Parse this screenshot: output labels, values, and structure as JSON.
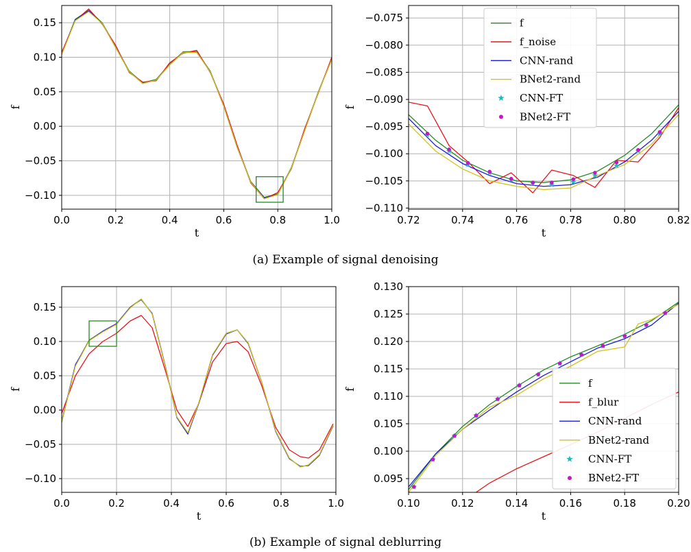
{
  "colors": {
    "f": "#228b22",
    "f_noise": "#e8141b",
    "f_blur": "#e8141b",
    "CNN-rand": "#1a1ae6",
    "BNet2-rand": "#d4c21a",
    "CNN-FT": "#1cbcbc",
    "BNet2-FT": "#c21ac2",
    "grid": "#b0b0b0",
    "zoom_box": "#228b22"
  },
  "captions": {
    "a": "(a)  Example of signal denoising",
    "b": "(b)  Example of signal deblurring"
  },
  "chart_data": [
    {
      "id": "a1",
      "type": "line",
      "xlabel": "t",
      "ylabel": "f",
      "xlim": [
        0.0,
        1.0
      ],
      "ylim": [
        -0.12,
        0.175
      ],
      "xticks": [
        0.0,
        0.2,
        0.4,
        0.6,
        0.8,
        1.0
      ],
      "xtick_labels": [
        "0.0",
        "0.2",
        "0.4",
        "0.6",
        "0.8",
        "1.0"
      ],
      "yticks": [
        0.15,
        0.1,
        0.05,
        0.0,
        -0.05,
        -0.1
      ],
      "ytick_labels": [
        "0.15",
        "0.10",
        "0.05",
        "0.00",
        "−0.05",
        "−0.10"
      ],
      "grid": true,
      "zoom_box": {
        "x": [
          0.72,
          0.82
        ],
        "y": [
          -0.11,
          -0.073
        ]
      },
      "x": [
        0.0,
        0.05,
        0.1,
        0.15,
        0.2,
        0.25,
        0.3,
        0.35,
        0.4,
        0.45,
        0.5,
        0.55,
        0.6,
        0.65,
        0.7,
        0.75,
        0.8,
        0.85,
        0.9,
        0.95,
        1.0
      ],
      "series": [
        {
          "name": "f",
          "values": [
            0.105,
            0.155,
            0.168,
            0.15,
            0.115,
            0.08,
            0.063,
            0.068,
            0.09,
            0.108,
            0.108,
            0.08,
            0.03,
            -0.03,
            -0.08,
            -0.103,
            -0.098,
            -0.06,
            -0.005,
            0.05,
            0.098
          ]
        },
        {
          "name": "f_noise",
          "values": [
            0.107,
            0.153,
            0.17,
            0.148,
            0.117,
            0.078,
            0.064,
            0.066,
            0.092,
            0.106,
            0.11,
            0.078,
            0.032,
            -0.028,
            -0.082,
            -0.105,
            -0.096,
            -0.062,
            -0.003,
            0.048,
            0.1
          ]
        },
        {
          "name": "CNN-rand",
          "values": [
            0.104,
            0.154,
            0.167,
            0.149,
            0.114,
            0.079,
            0.062,
            0.067,
            0.089,
            0.107,
            0.107,
            0.079,
            0.029,
            -0.031,
            -0.081,
            -0.104,
            -0.099,
            -0.061,
            -0.006,
            0.049,
            0.097
          ]
        },
        {
          "name": "BNet2-rand",
          "values": [
            0.104,
            0.153,
            0.166,
            0.149,
            0.114,
            0.079,
            0.062,
            0.067,
            0.089,
            0.107,
            0.107,
            0.079,
            0.029,
            -0.031,
            -0.081,
            -0.105,
            -0.099,
            -0.061,
            -0.006,
            0.049,
            0.097
          ]
        }
      ]
    },
    {
      "id": "a2",
      "type": "line",
      "xlabel": "t",
      "ylabel": "f",
      "xlim": [
        0.72,
        0.82
      ],
      "ylim": [
        -0.1102,
        -0.0727
      ],
      "xticks": [
        0.72,
        0.74,
        0.76,
        0.78,
        0.8,
        0.82
      ],
      "xtick_labels": [
        "0.72",
        "0.74",
        "0.76",
        "0.78",
        "0.80",
        "0.82"
      ],
      "yticks": [
        -0.075,
        -0.08,
        -0.085,
        -0.09,
        -0.095,
        -0.1,
        -0.105,
        -0.11
      ],
      "ytick_labels": [
        "−0.075",
        "−0.080",
        "−0.085",
        "−0.090",
        "−0.095",
        "−0.100",
        "−0.105",
        "−0.110"
      ],
      "grid": true,
      "legend": "top-center",
      "legend_entries": [
        {
          "name": "f",
          "marker": "line"
        },
        {
          "name": "f_noise",
          "marker": "line"
        },
        {
          "name": "CNN-rand",
          "marker": "line"
        },
        {
          "name": "BNet2-rand",
          "marker": "line"
        },
        {
          "name": "CNN-FT",
          "marker": "star"
        },
        {
          "name": "BNet2-FT",
          "marker": "dot"
        }
      ],
      "series": [
        {
          "name": "f",
          "style": "line",
          "x": [
            0.72,
            0.73,
            0.74,
            0.75,
            0.76,
            0.77,
            0.78,
            0.79,
            0.8,
            0.81,
            0.82
          ],
          "values": [
            -0.0928,
            -0.0975,
            -0.1012,
            -0.1035,
            -0.105,
            -0.1053,
            -0.1048,
            -0.1032,
            -0.1003,
            -0.0963,
            -0.091
          ]
        },
        {
          "name": "f_noise",
          "style": "line",
          "x": [
            0.72,
            0.727,
            0.735,
            0.742,
            0.75,
            0.758,
            0.766,
            0.773,
            0.781,
            0.789,
            0.797,
            0.805,
            0.813,
            0.82
          ],
          "values": [
            -0.0905,
            -0.0912,
            -0.0985,
            -0.1015,
            -0.1055,
            -0.1035,
            -0.1072,
            -0.103,
            -0.104,
            -0.1062,
            -0.1012,
            -0.1015,
            -0.097,
            -0.0915
          ]
        },
        {
          "name": "CNN-rand",
          "style": "line",
          "x": [
            0.72,
            0.73,
            0.74,
            0.75,
            0.76,
            0.77,
            0.78,
            0.79,
            0.8,
            0.81,
            0.82
          ],
          "values": [
            -0.0935,
            -0.0985,
            -0.1018,
            -0.104,
            -0.1055,
            -0.106,
            -0.1057,
            -0.1043,
            -0.1015,
            -0.0975,
            -0.0922
          ]
        },
        {
          "name": "BNet2-rand",
          "style": "line",
          "x": [
            0.72,
            0.73,
            0.74,
            0.75,
            0.76,
            0.77,
            0.78,
            0.79,
            0.8,
            0.81,
            0.82
          ],
          "values": [
            -0.0945,
            -0.0995,
            -0.1028,
            -0.105,
            -0.106,
            -0.1066,
            -0.1063,
            -0.104,
            -0.102,
            -0.0982,
            -0.0928
          ]
        },
        {
          "name": "CNN-FT",
          "style": "star",
          "x": [
            0.727,
            0.735,
            0.742,
            0.75,
            0.758,
            0.766,
            0.773,
            0.781,
            0.789,
            0.797,
            0.805,
            0.813
          ],
          "values": [
            -0.0965,
            -0.0995,
            -0.102,
            -0.1035,
            -0.1048,
            -0.1055,
            -0.1057,
            -0.1052,
            -0.104,
            -0.1022,
            -0.0995,
            -0.0963
          ]
        },
        {
          "name": "BNet2-FT",
          "style": "dot",
          "x": [
            0.727,
            0.735,
            0.742,
            0.75,
            0.758,
            0.766,
            0.773,
            0.781,
            0.789,
            0.797,
            0.805,
            0.813
          ],
          "values": [
            -0.0963,
            -0.0992,
            -0.1017,
            -0.1033,
            -0.1046,
            -0.1053,
            -0.1053,
            -0.1047,
            -0.1035,
            -0.1016,
            -0.0993,
            -0.096
          ]
        }
      ]
    },
    {
      "id": "b1",
      "type": "line",
      "xlabel": "t",
      "ylabel": "f",
      "xlim": [
        0.0,
        1.0
      ],
      "ylim": [
        -0.12,
        0.18
      ],
      "xticks": [
        0.0,
        0.2,
        0.4,
        0.6,
        0.8,
        1.0
      ],
      "xtick_labels": [
        "0.0",
        "0.2",
        "0.4",
        "0.6",
        "0.8",
        "1.0"
      ],
      "yticks": [
        0.15,
        0.1,
        0.05,
        0.0,
        -0.05,
        -0.1
      ],
      "ytick_labels": [
        "0.15",
        "0.10",
        "0.05",
        "0.00",
        "−0.05",
        "−0.10"
      ],
      "grid": true,
      "zoom_box": {
        "x": [
          0.1,
          0.2
        ],
        "y": [
          0.093,
          0.13
        ]
      },
      "x": [
        0.0,
        0.05,
        0.1,
        0.15,
        0.2,
        0.25,
        0.29,
        0.33,
        0.38,
        0.42,
        0.46,
        0.5,
        0.55,
        0.6,
        0.64,
        0.68,
        0.73,
        0.78,
        0.83,
        0.87,
        0.9,
        0.94,
        0.99
      ],
      "series": [
        {
          "name": "f",
          "values": [
            -0.018,
            0.065,
            0.102,
            0.115,
            0.125,
            0.15,
            0.162,
            0.14,
            0.06,
            -0.01,
            -0.034,
            0.01,
            0.08,
            0.112,
            0.117,
            0.098,
            0.04,
            -0.03,
            -0.07,
            -0.083,
            -0.08,
            -0.065,
            -0.022
          ]
        },
        {
          "name": "f_blur",
          "values": [
            -0.005,
            0.05,
            0.082,
            0.1,
            0.112,
            0.13,
            0.138,
            0.12,
            0.055,
            0.0,
            -0.024,
            0.01,
            0.07,
            0.097,
            0.1,
            0.085,
            0.035,
            -0.025,
            -0.058,
            -0.068,
            -0.07,
            -0.058,
            -0.02
          ]
        },
        {
          "name": "CNN-rand",
          "values": [
            -0.016,
            0.066,
            0.101,
            0.115,
            0.126,
            0.15,
            0.161,
            0.141,
            0.061,
            -0.011,
            -0.035,
            0.01,
            0.08,
            0.111,
            0.117,
            0.097,
            0.04,
            -0.031,
            -0.071,
            -0.082,
            -0.081,
            -0.066,
            -0.023
          ]
        },
        {
          "name": "BNet2-rand",
          "values": [
            -0.017,
            0.064,
            0.101,
            0.114,
            0.125,
            0.149,
            0.162,
            0.14,
            0.06,
            -0.01,
            -0.033,
            0.011,
            0.081,
            0.112,
            0.117,
            0.098,
            0.04,
            -0.03,
            -0.07,
            -0.083,
            -0.08,
            -0.065,
            -0.022
          ]
        }
      ]
    },
    {
      "id": "b2",
      "type": "line",
      "xlabel": "t",
      "ylabel": "f",
      "xlim": [
        0.1,
        0.2
      ],
      "ylim": [
        0.0925,
        0.13
      ],
      "xticks": [
        0.1,
        0.12,
        0.14,
        0.16,
        0.18,
        0.2
      ],
      "xtick_labels": [
        "0.10",
        "0.12",
        "0.14",
        "0.16",
        "0.18",
        "0.20"
      ],
      "yticks": [
        0.13,
        0.125,
        0.12,
        0.115,
        0.11,
        0.105,
        0.1,
        0.095
      ],
      "ytick_labels": [
        "0.130",
        "0.125",
        "0.120",
        "0.115",
        "0.110",
        "0.105",
        "0.100",
        "0.095"
      ],
      "grid": true,
      "legend": "bottom-right",
      "legend_entries": [
        {
          "name": "f",
          "marker": "line"
        },
        {
          "name": "f_blur",
          "marker": "line"
        },
        {
          "name": "CNN-rand",
          "marker": "line"
        },
        {
          "name": "BNet2-rand",
          "marker": "line"
        },
        {
          "name": "CNN-FT",
          "marker": "star"
        },
        {
          "name": "BNet2-FT",
          "marker": "dot"
        }
      ],
      "series": [
        {
          "name": "f",
          "style": "line",
          "x": [
            0.1,
            0.11,
            0.12,
            0.13,
            0.14,
            0.15,
            0.16,
            0.17,
            0.18,
            0.19,
            0.2
          ],
          "values": [
            0.093,
            0.0995,
            0.1045,
            0.1085,
            0.1118,
            0.1148,
            0.1172,
            0.1192,
            0.1213,
            0.1238,
            0.1272
          ]
        },
        {
          "name": "f_blur",
          "style": "line",
          "x": [
            0.125,
            0.13,
            0.14,
            0.15,
            0.16,
            0.17,
            0.18,
            0.19,
            0.2
          ],
          "values": [
            0.0925,
            0.0942,
            0.0968,
            0.099,
            0.1012,
            0.1035,
            0.106,
            0.1085,
            0.1108
          ]
        },
        {
          "name": "CNN-rand",
          "style": "line",
          "x": [
            0.1,
            0.11,
            0.12,
            0.13,
            0.14,
            0.15,
            0.16,
            0.17,
            0.18,
            0.19,
            0.2
          ],
          "values": [
            0.0935,
            0.0995,
            0.104,
            0.1075,
            0.1108,
            0.1138,
            0.1163,
            0.1188,
            0.1205,
            0.123,
            0.127
          ]
        },
        {
          "name": "BNet2-rand",
          "style": "line",
          "x": [
            0.1,
            0.11,
            0.12,
            0.13,
            0.14,
            0.15,
            0.16,
            0.17,
            0.18,
            0.185,
            0.19,
            0.2
          ],
          "values": [
            0.0925,
            0.0992,
            0.104,
            0.108,
            0.1102,
            0.1132,
            0.1155,
            0.1182,
            0.119,
            0.1232,
            0.124,
            0.1268
          ]
        },
        {
          "name": "CNN-FT",
          "style": "star",
          "x": [
            0.102,
            0.109,
            0.117,
            0.125,
            0.133,
            0.141,
            0.148,
            0.156,
            0.164,
            0.172,
            0.18,
            0.188,
            0.195
          ],
          "values": [
            0.0935,
            0.0985,
            0.1028,
            0.1065,
            0.1095,
            0.112,
            0.114,
            0.116,
            0.1176,
            0.1192,
            0.121,
            0.123,
            0.1252
          ]
        },
        {
          "name": "BNet2-FT",
          "style": "dot",
          "x": [
            0.102,
            0.109,
            0.117,
            0.125,
            0.133,
            0.141,
            0.148,
            0.156,
            0.164,
            0.172,
            0.18,
            0.188,
            0.195
          ],
          "values": [
            0.0935,
            0.0985,
            0.1028,
            0.1065,
            0.1095,
            0.112,
            0.114,
            0.116,
            0.1176,
            0.1192,
            0.121,
            0.123,
            0.1252
          ]
        }
      ]
    }
  ]
}
